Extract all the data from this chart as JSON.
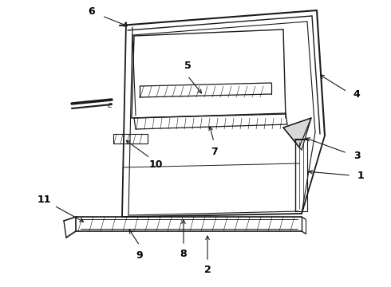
{
  "background_color": "#ffffff",
  "line_color": "#1a1a1a",
  "figsize": [
    4.9,
    3.6
  ],
  "dpi": 100,
  "xlim": [
    0,
    490
  ],
  "ylim": [
    0,
    360
  ]
}
